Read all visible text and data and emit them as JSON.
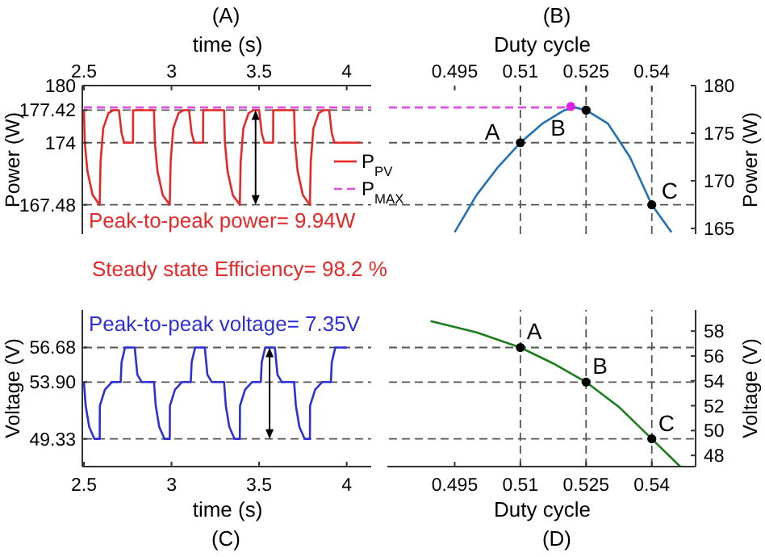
{
  "chart_data": [
    {
      "type": "line",
      "title": "(A)",
      "xlabel": "time (s)",
      "ylabel": "Power (W)",
      "xlim": [
        2.5,
        4.14
      ],
      "xticks": [
        2.5,
        3,
        3.5,
        4
      ],
      "ylim": [
        164.4,
        180
      ],
      "yticks": [
        180,
        177.42,
        174,
        167.48
      ],
      "legend": "right",
      "series": [
        {
          "name": "P$_{PV}$",
          "color": "#e52828",
          "line_style": "solid",
          "x": [
            2.5,
            2.505,
            2.52,
            2.55,
            2.59,
            2.595,
            2.61,
            2.64,
            2.67,
            2.7,
            2.715,
            2.73,
            2.78,
            2.781,
            2.9,
            2.905,
            2.92,
            2.95,
            2.99,
            2.995,
            3.01,
            3.04,
            3.07,
            3.1,
            3.115,
            3.13,
            3.18,
            3.181,
            3.3,
            3.305,
            3.32,
            3.35,
            3.39,
            3.395,
            3.41,
            3.44,
            3.47,
            3.5,
            3.515,
            3.53,
            3.58,
            3.581,
            3.7,
            3.705,
            3.72,
            3.75,
            3.79,
            3.795,
            3.81,
            3.84,
            3.87,
            3.9,
            3.915,
            3.93,
            4.08
          ],
          "values": [
            177.42,
            174,
            171,
            168.5,
            167.48,
            172,
            175.5,
            177.1,
            177.42,
            177.42,
            175,
            174,
            174,
            177.42,
            177.42,
            174,
            171,
            168.5,
            167.48,
            172,
            175.5,
            177.1,
            177.42,
            177.42,
            175,
            174,
            174,
            177.42,
            177.42,
            174,
            171,
            168.5,
            167.48,
            172,
            175.5,
            177.1,
            177.42,
            177.42,
            175,
            174,
            174,
            177.42,
            177.42,
            174,
            171,
            168.5,
            167.48,
            172,
            175.5,
            177.1,
            177.42,
            177.42,
            175,
            174,
            174
          ]
        },
        {
          "name": "P$_{MAX}$",
          "color": "#e050e0",
          "line_style": "dashed",
          "x": [
            2.5,
            4.14
          ],
          "values": [
            177.7,
            177.7
          ]
        }
      ],
      "ref_lines": [
        {
          "axis": "y",
          "value": 177.42,
          "color": "#555555",
          "line_style": "dashed"
        },
        {
          "axis": "y",
          "value": 174,
          "color": "#555555",
          "line_style": "dashed"
        },
        {
          "axis": "y",
          "value": 167.48,
          "color": "#555555",
          "line_style": "dashed"
        }
      ],
      "annotations": [
        {
          "text": "Peak-to-peak power= 9.94W",
          "x": 3.48,
          "y": 167.48
        },
        "Steady state Efficiency= 98.2 %"
      ]
    },
    {
      "type": "line",
      "title": "(B)",
      "xlabel": "Duty cycle",
      "ylabel": "Power (W)",
      "xlim": [
        0.48,
        0.55
      ],
      "xticks": [
        0.495,
        0.51,
        0.525,
        0.54
      ],
      "ylim": [
        164.4,
        180
      ],
      "yticks": [
        165,
        170,
        175,
        180
      ],
      "series": [
        {
          "color": "#2271b3",
          "line_style": "solid",
          "x": [
            0.495,
            0.5,
            0.505,
            0.51,
            0.515,
            0.52,
            0.5225,
            0.525,
            0.53,
            0.535,
            0.54,
            0.5445
          ],
          "values": [
            164.6,
            168.5,
            171.5,
            174,
            176,
            177.4,
            177.7,
            177.42,
            176,
            172.5,
            167.48,
            164.6
          ]
        },
        {
          "color": "#e050e0",
          "line_style": "dashed",
          "x": [
            0.48,
            0.5215
          ],
          "values": [
            177.7,
            177.7
          ]
        },
        {
          "type": "scatter",
          "color": "#e020e0",
          "marker": "circle",
          "x": [
            0.5215
          ],
          "values": [
            177.8
          ]
        },
        {
          "type": "scatter",
          "color": "#000000",
          "marker": "circle",
          "x": [
            0.51,
            0.525,
            0.54
          ],
          "values": [
            174,
            177.42,
            167.48
          ]
        }
      ],
      "ref_lines": [
        {
          "axis": "y",
          "value": 174,
          "color": "#555555",
          "line_style": "dashed"
        },
        {
          "axis": "y",
          "value": 167.48,
          "color": "#555555",
          "line_style": "dashed"
        },
        {
          "axis": "x",
          "value": 0.51,
          "color": "#555555",
          "line_style": "dashed"
        },
        {
          "axis": "x",
          "value": 0.525,
          "color": "#555555",
          "line_style": "dashed"
        },
        {
          "axis": "x",
          "value": 0.54,
          "color": "#555555",
          "line_style": "dashed"
        }
      ],
      "annotations": [
        {
          "text": "A",
          "x": 0.51,
          "y": 174
        },
        {
          "text": "B",
          "x": 0.525,
          "y": 177.42
        },
        {
          "text": "C",
          "x": 0.54,
          "y": 167.48
        }
      ]
    },
    {
      "type": "line",
      "title": "(C)",
      "xlabel": "time (s)",
      "ylabel": "Voltage (V)",
      "xlim": [
        2.5,
        4.14
      ],
      "xticks": [
        2.5,
        3,
        3.5,
        4
      ],
      "ylim": [
        47.1,
        59.7
      ],
      "yticks": [
        49.33,
        {
          "value": 53.9,
          "label": "53.90"
        },
        56.68
      ],
      "series": [
        {
          "color": "#2f2fd6",
          "line_style": "solid",
          "x": [
            2.5,
            2.51,
            2.53,
            2.56,
            2.59,
            2.591,
            2.62,
            2.66,
            2.71,
            2.715,
            2.735,
            2.79,
            2.805,
            2.83,
            2.9,
            2.91,
            2.93,
            2.96,
            2.99,
            2.991,
            3.02,
            3.06,
            3.11,
            3.115,
            3.135,
            3.19,
            3.205,
            3.23,
            3.3,
            3.31,
            3.33,
            3.36,
            3.39,
            3.391,
            3.42,
            3.46,
            3.51,
            3.515,
            3.535,
            3.59,
            3.605,
            3.63,
            3.7,
            3.71,
            3.73,
            3.76,
            3.79,
            3.791,
            3.82,
            3.86,
            3.91,
            3.915,
            3.935,
            4.0
          ],
          "values": [
            53.9,
            52,
            50.3,
            49.33,
            49.33,
            52,
            53.3,
            53.9,
            53.9,
            55.5,
            56.68,
            56.68,
            54.5,
            53.9,
            53.9,
            52,
            50.3,
            49.33,
            49.33,
            52,
            53.3,
            53.9,
            53.9,
            55.5,
            56.68,
            56.68,
            54.5,
            53.9,
            53.9,
            52,
            50.3,
            49.33,
            49.33,
            52,
            53.3,
            53.9,
            53.9,
            55.5,
            56.68,
            56.68,
            54.5,
            53.9,
            53.9,
            52,
            50.3,
            49.33,
            49.33,
            52,
            53.3,
            53.9,
            53.9,
            55.5,
            56.68,
            56.68
          ]
        }
      ],
      "ref_lines": [
        {
          "axis": "y",
          "value": 56.68,
          "color": "#555555",
          "line_style": "dashed"
        },
        {
          "axis": "y",
          "value": 53.9,
          "color": "#555555",
          "line_style": "dashed"
        },
        {
          "axis": "y",
          "value": 49.33,
          "color": "#555555",
          "line_style": "dashed"
        }
      ],
      "annotations": [
        {
          "text": "Peak-to-peak voltage= 7.35V",
          "x": 3.56,
          "y": 49.33
        }
      ]
    },
    {
      "type": "line",
      "title": "(D)",
      "xlabel": "Duty cycle",
      "ylabel": "Voltage (V)",
      "xlim": [
        0.48,
        0.55
      ],
      "xticks": [
        0.495,
        0.51,
        0.525,
        0.54
      ],
      "ylim": [
        47.1,
        59.7
      ],
      "yticks": [
        48,
        50,
        52,
        54,
        56,
        58
      ],
      "series": [
        {
          "color": "#1b7d1b",
          "line_style": "solid",
          "x": [
            0.4895,
            0.5,
            0.51,
            0.5175,
            0.525,
            0.5325,
            0.54,
            0.5465
          ],
          "values": [
            58.8,
            57.9,
            56.68,
            55.4,
            53.9,
            51.9,
            49.33,
            47.1
          ]
        },
        {
          "type": "scatter",
          "color": "#000000",
          "marker": "circle",
          "x": [
            0.51,
            0.525,
            0.54
          ],
          "values": [
            56.68,
            53.9,
            49.33
          ]
        }
      ],
      "ref_lines": [
        {
          "axis": "y",
          "value": 56.68,
          "color": "#555555",
          "line_style": "dashed"
        },
        {
          "axis": "y",
          "value": 53.9,
          "color": "#555555",
          "line_style": "dashed"
        },
        {
          "axis": "y",
          "value": 49.33,
          "color": "#555555",
          "line_style": "dashed"
        },
        {
          "axis": "x",
          "value": 0.51,
          "color": "#555555",
          "line_style": "dashed"
        },
        {
          "axis": "x",
          "value": 0.525,
          "color": "#555555",
          "line_style": "dashed"
        },
        {
          "axis": "x",
          "value": 0.54,
          "color": "#555555",
          "line_style": "dashed"
        }
      ],
      "annotations": [
        {
          "text": "A",
          "x": 0.51,
          "y": 56.68
        },
        {
          "text": "B",
          "x": 0.525,
          "y": 53.9
        },
        {
          "text": "C",
          "x": 0.54,
          "y": 49.33
        }
      ]
    }
  ]
}
